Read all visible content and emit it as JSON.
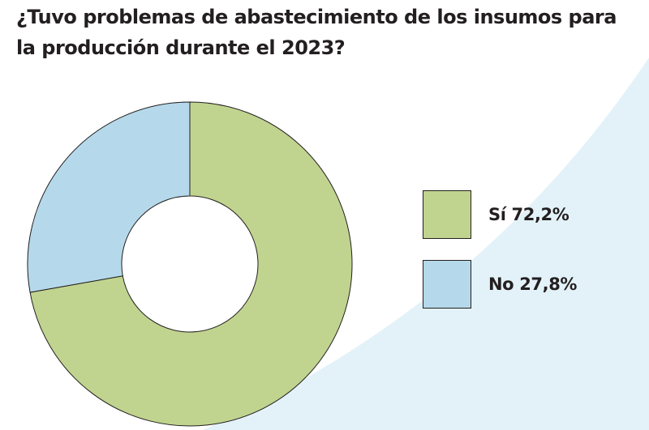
{
  "colors": {
    "si": "#c0d48f",
    "no": "#b5d9ea",
    "text": "#231f20",
    "background_swoosh": "#e3f2f9"
  },
  "chart_data": {
    "type": "pie",
    "title": "¿Tuvo problemas de abastecimiento de los insumos para la producción durante el 2023?",
    "donut": true,
    "legend_position": "right",
    "categories": [
      "Sí",
      "No"
    ],
    "values": [
      72.2,
      27.8
    ],
    "unit": "%",
    "series": [
      {
        "name": "Sí",
        "value": 72.2,
        "label": "72,2%",
        "color": "#c0d48f"
      },
      {
        "name": "No",
        "value": 27.8,
        "label": "27,8%",
        "color": "#b5d9ea"
      }
    ]
  }
}
